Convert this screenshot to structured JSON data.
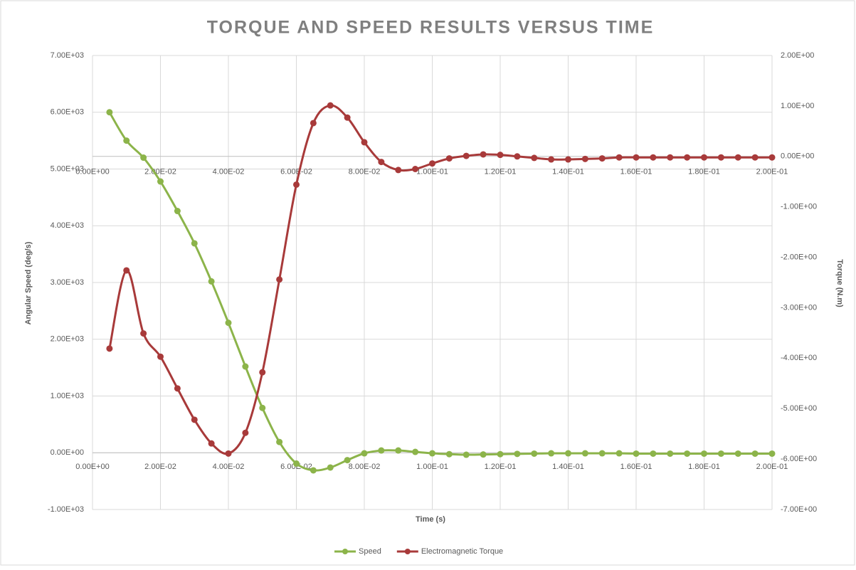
{
  "chart_data": {
    "type": "line",
    "title": "TORQUE AND SPEED RESULTS VERSUS TIME",
    "x_label": "Time (s)",
    "y_label": "Angular Speed (deg/s)",
    "y2_label": "Torque (N.m)",
    "x": [
      0.005,
      0.01,
      0.015,
      0.02,
      0.025,
      0.03,
      0.035,
      0.04,
      0.045,
      0.05,
      0.055,
      0.06,
      0.065,
      0.07,
      0.075,
      0.08,
      0.085,
      0.09,
      0.095,
      0.1,
      0.105,
      0.11,
      0.115,
      0.12,
      0.125,
      0.13,
      0.135,
      0.14,
      0.145,
      0.15,
      0.155,
      0.16,
      0.165,
      0.17,
      0.175,
      0.18,
      0.185,
      0.19,
      0.195,
      0.2
    ],
    "series": [
      {
        "name": "Speed",
        "color": "#8cb44a",
        "values": [
          6000,
          5500,
          5200,
          4780,
          4260,
          3690,
          3020,
          2290,
          1520,
          790,
          190,
          -190,
          -310,
          -260,
          -130,
          -10,
          40,
          40,
          15,
          -10,
          -25,
          -35,
          -30,
          -25,
          -20,
          -15,
          -10,
          -10,
          -10,
          -10,
          -10,
          -15,
          -15,
          -15,
          -15,
          -15,
          -15,
          -15,
          -15,
          -15
        ]
      },
      {
        "name": "Electromagnetic Torque",
        "color": "#a83a3a",
        "axis": "y2",
        "values": [
          -3.81,
          -2.26,
          -3.51,
          -3.97,
          -4.6,
          -5.22,
          -5.69,
          -5.89,
          -5.48,
          -4.28,
          -2.44,
          -0.56,
          0.66,
          1.01,
          0.77,
          0.28,
          -0.11,
          -0.27,
          -0.25,
          -0.14,
          -0.04,
          0.01,
          0.04,
          0.03,
          0,
          -0.03,
          -0.06,
          -0.06,
          -0.05,
          -0.04,
          -0.02,
          -0.02,
          -0.02,
          -0.02,
          -0.02,
          -0.02,
          -0.02,
          -0.02,
          -0.02,
          -0.02
        ]
      }
    ],
    "xlim": [
      0,
      0.2
    ],
    "xticks": [
      {
        "value": 0,
        "label": "0.00E+00"
      },
      {
        "value": 0.02,
        "label": "2.00E-02"
      },
      {
        "value": 0.04,
        "label": "4.00E-02"
      },
      {
        "value": 0.06,
        "label": "6.00E-02"
      },
      {
        "value": 0.08,
        "label": "8.00E-02"
      },
      {
        "value": 0.1,
        "label": "1.00E-01"
      },
      {
        "value": 0.12,
        "label": "1.20E-01"
      },
      {
        "value": 0.14,
        "label": "1.40E-01"
      },
      {
        "value": 0.16,
        "label": "1.60E-01"
      },
      {
        "value": 0.18,
        "label": "1.80E-01"
      },
      {
        "value": 0.2,
        "label": "2.00E-01"
      }
    ],
    "ylim": [
      -1000,
      7000
    ],
    "yticks": [
      {
        "value": -1000,
        "label": "-1.00E+03"
      },
      {
        "value": 0,
        "label": "0.00E+00"
      },
      {
        "value": 1000,
        "label": "1.00E+03"
      },
      {
        "value": 2000,
        "label": "2.00E+03"
      },
      {
        "value": 3000,
        "label": "3.00E+03"
      },
      {
        "value": 4000,
        "label": "4.00E+03"
      },
      {
        "value": 5000,
        "label": "5.00E+03"
      },
      {
        "value": 6000,
        "label": "6.00E+03"
      },
      {
        "value": 7000,
        "label": "7.00E+03"
      }
    ],
    "y2lim": [
      -7,
      2
    ],
    "y2ticks": [
      {
        "value": -7,
        "label": "-7.00E+00"
      },
      {
        "value": -6,
        "label": "-6.00E+00"
      },
      {
        "value": -5,
        "label": "-5.00E+00"
      },
      {
        "value": -4,
        "label": "-4.00E+00"
      },
      {
        "value": -3,
        "label": "-3.00E+00"
      },
      {
        "value": -2,
        "label": "-2.00E+00"
      },
      {
        "value": -1,
        "label": "-1.00E+00"
      },
      {
        "value": 0,
        "label": "0.00E+00"
      },
      {
        "value": 1,
        "label": "1.00E+00"
      },
      {
        "value": 2,
        "label": "2.00E+00"
      }
    ],
    "grid": true,
    "legend": "bottom"
  }
}
